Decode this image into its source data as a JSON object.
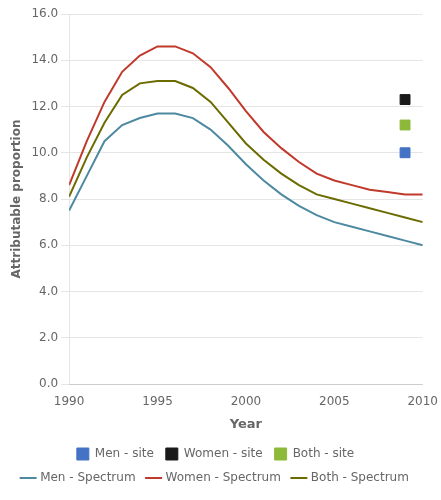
{
  "chart_data": {
    "type": "line",
    "xlabel": "Year",
    "ylabel": "Attributable proportion",
    "xlim": [
      1990,
      2010
    ],
    "ylim": [
      0.0,
      16.0
    ],
    "xticks": [
      1990,
      1995,
      2000,
      2005,
      2010
    ],
    "yticks": [
      {
        "value": 0.0,
        "label": "0.0"
      },
      {
        "value": 2.0,
        "label": "2.0"
      },
      {
        "value": 4.0,
        "label": "4.0"
      },
      {
        "value": 6.0,
        "label": "6.0"
      },
      {
        "value": 8.0,
        "label": "8.0"
      },
      {
        "value": 10.0,
        "label": "10.0"
      },
      {
        "value": 12.0,
        "label": "12.0"
      },
      {
        "value": 14.0,
        "label": "14.0"
      },
      {
        "value": 16.0,
        "label": "16.0"
      }
    ],
    "grid": "y",
    "legend": "bottom",
    "series": [
      {
        "name": "Men - Spectrum",
        "color": "#4d89a0",
        "x": [
          1990,
          1991,
          1992,
          1993,
          1994,
          1995,
          1996,
          1997,
          1998,
          1999,
          2000,
          2001,
          2002,
          2003,
          2004,
          2005,
          2006,
          2007,
          2008,
          2009,
          2010
        ],
        "values": [
          7.5,
          9.0,
          10.5,
          11.2,
          11.5,
          11.7,
          11.7,
          11.5,
          11.0,
          10.3,
          9.5,
          8.8,
          8.2,
          7.7,
          7.3,
          7.0,
          6.8,
          6.6,
          6.4,
          6.2,
          6.0
        ]
      },
      {
        "name": "Men - site",
        "type": "scatter",
        "marker": "square",
        "color": "#4472c4",
        "x": [
          2009
        ],
        "values": [
          10.0
        ]
      },
      {
        "name": "Women - Spectrum",
        "color": "#c0392b",
        "x": [
          1990,
          1991,
          1992,
          1993,
          1994,
          1995,
          1996,
          1997,
          1998,
          1999,
          2000,
          2001,
          2002,
          2003,
          2004,
          2005,
          2006,
          2007,
          2008,
          2009,
          2010
        ],
        "values": [
          8.6,
          10.5,
          12.2,
          13.5,
          14.2,
          14.6,
          14.6,
          14.3,
          13.7,
          12.8,
          11.8,
          10.9,
          10.2,
          9.6,
          9.1,
          8.8,
          8.6,
          8.4,
          8.3,
          8.2,
          8.2
        ]
      },
      {
        "name": "Women - site",
        "type": "scatter",
        "marker": "square",
        "color": "#1a1a1a",
        "x": [
          2009
        ],
        "values": [
          12.3
        ]
      },
      {
        "name": "Both - Spectrum",
        "color": "#6b6b00",
        "x": [
          1990,
          1991,
          1992,
          1993,
          1994,
          1995,
          1996,
          1997,
          1998,
          1999,
          2000,
          2001,
          2002,
          2003,
          2004,
          2005,
          2006,
          2007,
          2008,
          2009,
          2010
        ],
        "values": [
          8.1,
          9.8,
          11.3,
          12.5,
          13.0,
          13.1,
          13.1,
          12.8,
          12.2,
          11.3,
          10.4,
          9.7,
          9.1,
          8.6,
          8.2,
          8.0,
          7.8,
          7.6,
          7.4,
          7.2,
          7.0
        ]
      },
      {
        "name": "Both - site",
        "type": "scatter",
        "marker": "square",
        "color": "#8db93b",
        "x": [
          2009
        ],
        "values": [
          11.2
        ]
      }
    ]
  }
}
